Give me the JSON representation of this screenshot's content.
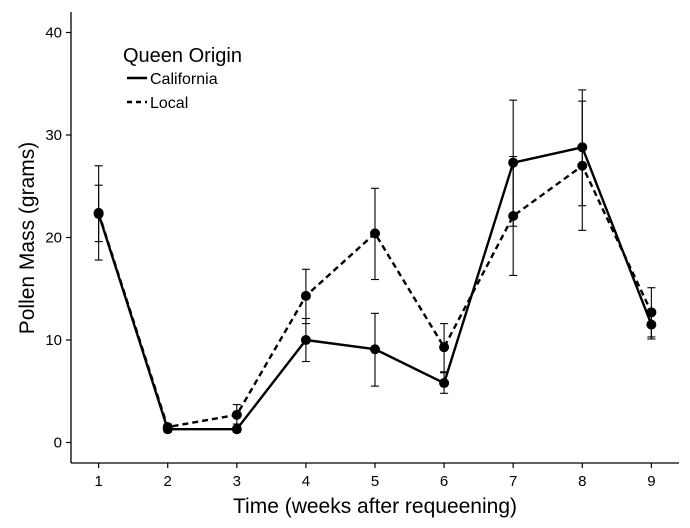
{
  "chart_data": {
    "type": "line",
    "title": "",
    "xlabel": "Time (weeks after requeening)",
    "ylabel": "Pollen Mass (grams)",
    "x": [
      1,
      2,
      3,
      4,
      5,
      6,
      7,
      8,
      9
    ],
    "xlim": [
      0.6,
      9.4
    ],
    "ylim": [
      -2,
      42
    ],
    "yticks": [
      0,
      10,
      20,
      30,
      40
    ],
    "grid": false,
    "legend": {
      "title": "Queen Origin",
      "position": "top-left"
    },
    "series": [
      {
        "name": "California",
        "line_style": "solid",
        "color": "#000000",
        "values": [
          22.3,
          1.3,
          1.3,
          10.0,
          9.1,
          5.8,
          27.3,
          28.8,
          11.5
        ],
        "error_low": [
          17.8,
          1.0,
          1.0,
          7.9,
          5.5,
          4.8,
          21.1,
          23.1,
          10.1
        ],
        "error_high": [
          27.0,
          1.6,
          1.6,
          12.1,
          12.6,
          6.8,
          33.4,
          34.4,
          12.9
        ]
      },
      {
        "name": "Local",
        "line_style": "dashed",
        "color": "#000000",
        "values": [
          22.4,
          1.5,
          2.7,
          14.3,
          20.4,
          9.3,
          22.1,
          27.0,
          12.7
        ],
        "error_low": [
          19.6,
          1.2,
          1.8,
          11.6,
          15.9,
          6.9,
          16.3,
          20.7,
          10.3
        ],
        "error_high": [
          25.1,
          1.8,
          3.7,
          16.9,
          24.8,
          11.6,
          27.9,
          33.3,
          15.1
        ]
      }
    ]
  }
}
